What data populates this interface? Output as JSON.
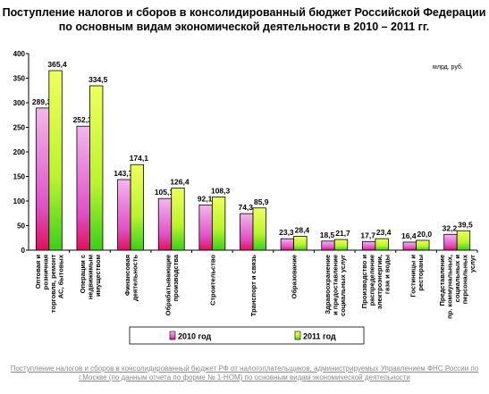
{
  "chart_data": {
    "type": "bar",
    "title_lines": [
      "Поступление налогов и сборов в консолидированный бюджет Российской Федерации",
      "по основным видам экономической деятельности в 2010 – 2011 гг."
    ],
    "unit_label": "млрд. руб.",
    "ylim": [
      0,
      400
    ],
    "yticks": [
      0,
      50,
      100,
      150,
      200,
      250,
      300,
      350,
      400
    ],
    "categories": [
      [
        "Оптовая и",
        "розничная",
        "торговля, ремонт",
        "АС, бытовых"
      ],
      [
        "Операции с",
        "недвижимым",
        "имуществом"
      ],
      [
        "Финансовая",
        "деятельность"
      ],
      [
        "Обрабатывающие",
        "производства"
      ],
      [
        "Строительство"
      ],
      [
        "Транспорт и связь"
      ],
      [
        "Образование"
      ],
      [
        "Здравоохранение",
        "и предоставление",
        "социальных услуг"
      ],
      [
        "Производство и",
        "распределение",
        "электроэнергии,",
        "газа и воды"
      ],
      [
        "Гостиницы и",
        "рестораны"
      ],
      [
        "Представление",
        "пр. коммунальных,",
        "социальных и",
        "персональных",
        "услуг"
      ]
    ],
    "series": [
      {
        "name": "2010 год",
        "values": [
          289.3,
          252.3,
          143.7,
          105.1,
          92.1,
          74.3,
          23.3,
          18.5,
          17.7,
          16.4,
          32.2
        ],
        "labels": [
          "289,3",
          "252,3",
          "143,7",
          "105,1",
          "92,1",
          "74,3",
          "23,3",
          "18,5",
          "17,7",
          "16,4",
          "32,2"
        ],
        "color": "#e87ed8"
      },
      {
        "name": "2011 год",
        "values": [
          365.4,
          334.5,
          174.1,
          126.4,
          108.3,
          85.9,
          28.4,
          21.7,
          23.4,
          20.0,
          39.5
        ],
        "labels": [
          "365,4",
          "334,5",
          "174,1",
          "126,4",
          "108,3",
          "85,9",
          "28,4",
          "21,7",
          "23,4",
          "20,0",
          "39,5"
        ],
        "color": "#c6ff1a"
      }
    ],
    "legend": "bottom",
    "grid": false
  },
  "caption": "Поступление налогов и сборов в консолидированный бюджет РФ от налогоплательщиков, администрируемых Управлением ФНС России по г.Москве (по данным отчета по форме № 1-НОМ) по основным видам экономической деятельности"
}
